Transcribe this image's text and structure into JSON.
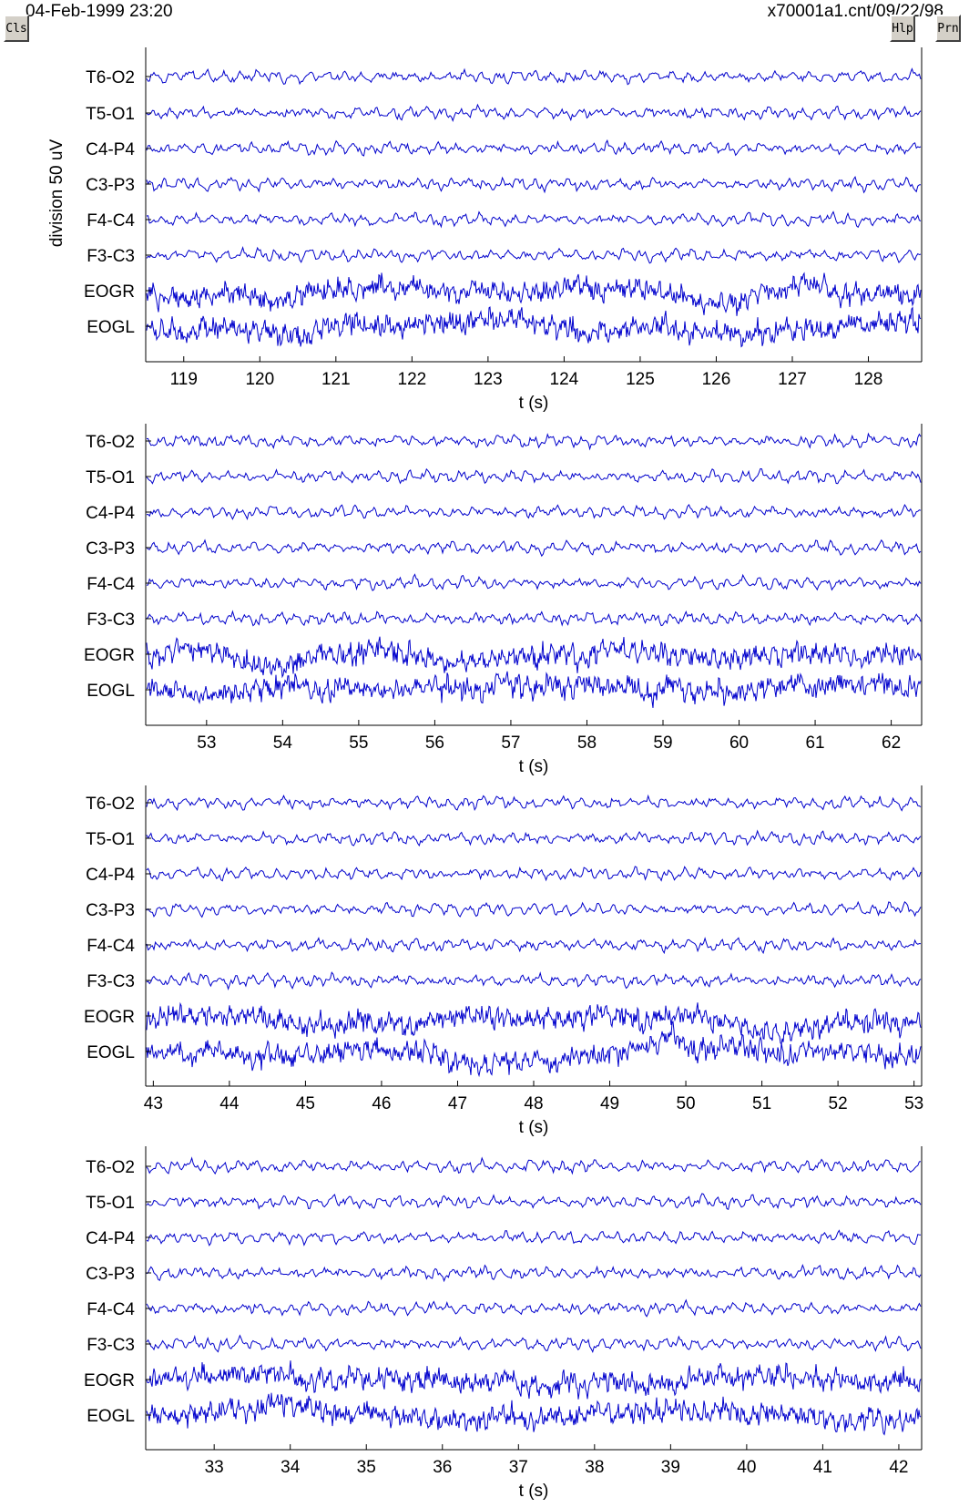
{
  "header": {
    "left_text": "04-Feb-1999 23:20",
    "right_text": "x70001a1.cnt/09/22/98"
  },
  "toolbar": {
    "cls_label": "Cls",
    "hlp_label": "Hlp",
    "prn_label": "Prn"
  },
  "colors": {
    "trace": "#0000cc",
    "axes": "#000000",
    "background": "#ffffff"
  },
  "chart_data": [
    {
      "type": "line",
      "title": "",
      "xlabel": "t (s)",
      "ylabel": "division 50 uV",
      "xlim": [
        118.5,
        128.7
      ],
      "xticks": [
        119,
        120,
        121,
        122,
        123,
        124,
        125,
        126,
        127,
        128
      ],
      "channels": [
        "T6-O2",
        "T5-O1",
        "C4-P4",
        "C3-P3",
        "F4-C4",
        "F3-C3",
        "EOGR",
        "EOGL"
      ],
      "grid": false
    },
    {
      "type": "line",
      "title": "",
      "xlabel": "t (s)",
      "ylabel": "",
      "xlim": [
        52.2,
        62.4
      ],
      "xticks": [
        53,
        54,
        55,
        56,
        57,
        58,
        59,
        60,
        61,
        62
      ],
      "channels": [
        "T6-O2",
        "T5-O1",
        "C4-P4",
        "C3-P3",
        "F4-C4",
        "F3-C3",
        "EOGR",
        "EOGL"
      ],
      "grid": false
    },
    {
      "type": "line",
      "title": "",
      "xlabel": "t (s)",
      "ylabel": "",
      "xlim": [
        42.9,
        53.1
      ],
      "xticks": [
        43,
        44,
        45,
        46,
        47,
        48,
        49,
        50,
        51,
        52,
        53
      ],
      "channels": [
        "T6-O2",
        "T5-O1",
        "C4-P4",
        "C3-P3",
        "F4-C4",
        "F3-C3",
        "EOGR",
        "EOGL"
      ],
      "grid": false
    },
    {
      "type": "line",
      "title": "",
      "xlabel": "t (s)",
      "ylabel": "",
      "xlim": [
        32.1,
        42.3
      ],
      "xticks": [
        33,
        34,
        35,
        36,
        37,
        38,
        39,
        40,
        41,
        42
      ],
      "channels": [
        "T6-O2",
        "T5-O1",
        "C4-P4",
        "C3-P3",
        "F4-C4",
        "F3-C3",
        "EOGR",
        "EOGL"
      ],
      "grid": false
    }
  ]
}
